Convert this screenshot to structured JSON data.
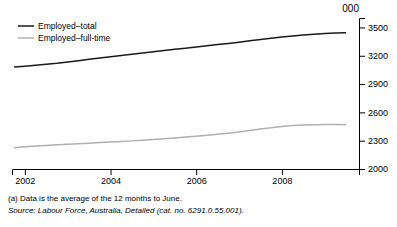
{
  "chart_data": {
    "type": "line",
    "title": "000",
    "x": [
      2001.75,
      2002.0,
      2002.25,
      2002.5,
      2002.75,
      2003.0,
      2003.25,
      2003.5,
      2003.75,
      2004.0,
      2004.25,
      2004.5,
      2004.75,
      2005.0,
      2005.25,
      2005.5,
      2005.75,
      2006.0,
      2006.25,
      2006.5,
      2006.75,
      2007.0,
      2007.25,
      2007.5,
      2007.75,
      2008.0,
      2008.25,
      2008.5,
      2008.75,
      2009.0,
      2009.25,
      2009.5
    ],
    "series": [
      {
        "name": "Employed–total",
        "color": "#1a1a1a",
        "values": [
          3080,
          3090,
          3100,
          3110,
          3120,
          3135,
          3148,
          3162,
          3175,
          3190,
          3203,
          3216,
          3228,
          3242,
          3255,
          3268,
          3280,
          3292,
          3305,
          3318,
          3330,
          3343,
          3358,
          3372,
          3385,
          3398,
          3410,
          3420,
          3428,
          3435,
          3440,
          3445
        ]
      },
      {
        "name": "Employed–full-time",
        "color": "#b0b0b0",
        "values": [
          2225,
          2235,
          2243,
          2250,
          2256,
          2263,
          2268,
          2274,
          2280,
          2286,
          2292,
          2298,
          2304,
          2312,
          2320,
          2328,
          2338,
          2348,
          2358,
          2368,
          2380,
          2393,
          2408,
          2423,
          2438,
          2450,
          2460,
          2467,
          2470,
          2472,
          2472,
          2470
        ]
      }
    ],
    "xlim": [
      2001.7,
      2009.8
    ],
    "xticks": [
      2002,
      2004,
      2006,
      2008
    ],
    "ylim": [
      2000,
      3600
    ],
    "yticks": [
      2000,
      2300,
      2600,
      2900,
      3200,
      3500
    ],
    "grid": false,
    "legend": "top-left",
    "annotations": [
      "(a) Data is the average of the 12 months to June.",
      "Source: Labour Force, Australia, Detailed (cat.  no.  6291.0.55.001)."
    ]
  }
}
